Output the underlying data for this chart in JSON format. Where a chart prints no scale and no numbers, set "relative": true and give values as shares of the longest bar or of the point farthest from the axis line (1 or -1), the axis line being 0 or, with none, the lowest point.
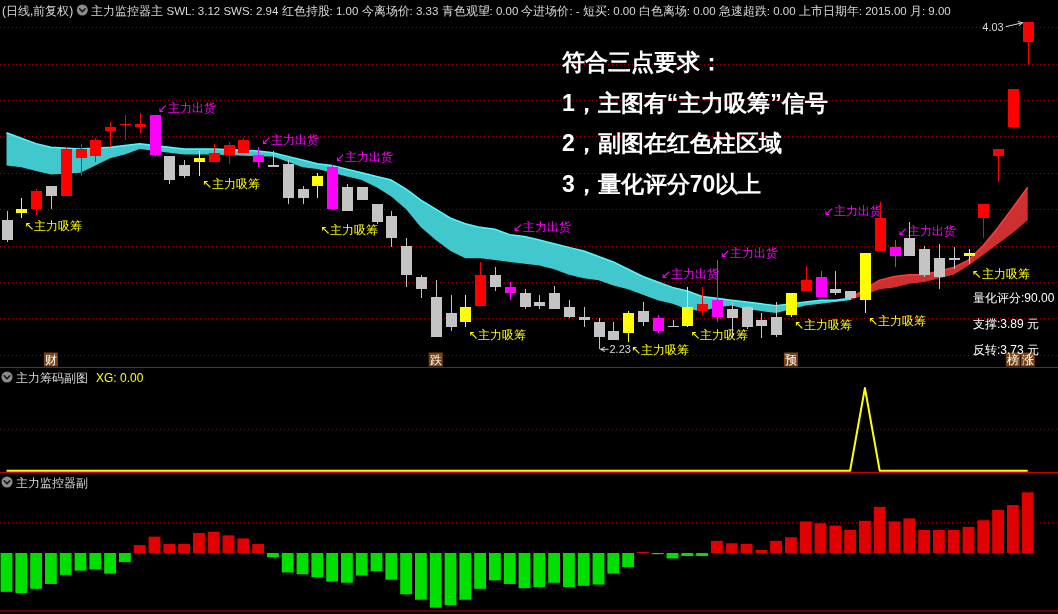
{
  "chart_data": [
    {
      "type": "candlestick",
      "title": "(日线,前复权)",
      "subtitle": "主力监控器主 SWL: 3.12 SWS: 2.94 红色持股: 1.00 今离场价: 3.33 青色观望: 0.00 今进场价: - 短买: 0.00 白色离场: 0.00 急速超跌: 0.00 上市日期年: 2015.00 月: 9.00",
      "categories": [
        null,
        null,
        null,
        "财",
        null,
        null,
        null,
        null,
        null,
        null,
        null,
        null,
        null,
        null,
        null,
        null,
        null,
        null,
        null,
        null,
        null,
        null,
        null,
        null,
        null,
        null,
        null,
        null,
        null,
        "跌",
        null,
        null,
        null,
        null,
        null,
        null,
        null,
        null,
        null,
        null,
        null,
        null,
        null,
        null,
        null,
        null,
        null,
        null,
        null,
        null,
        null,
        null,
        null,
        "预",
        null,
        null,
        null,
        null,
        null,
        null,
        null,
        null,
        null,
        null,
        null,
        null,
        null,
        null,
        "榜",
        "涨"
      ],
      "ohlc": [
        [
          2.94,
          2.99,
          2.82,
          2.83
        ],
        [
          2.98,
          3.06,
          2.95,
          3.0
        ],
        [
          3.0,
          3.11,
          2.97,
          3.1
        ],
        [
          3.13,
          3.13,
          3.0,
          3.07
        ],
        [
          3.07,
          3.34,
          3.07,
          3.33
        ],
        [
          3.28,
          3.36,
          3.18,
          3.33
        ],
        [
          3.29,
          3.39,
          3.26,
          3.38
        ],
        [
          3.43,
          3.48,
          3.34,
          3.45
        ],
        [
          3.46,
          3.52,
          3.38,
          3.47
        ],
        [
          3.45,
          3.53,
          3.42,
          3.47
        ],
        [
          3.52,
          3.52,
          3.29,
          3.3
        ],
        [
          3.29,
          3.29,
          3.14,
          3.16
        ],
        [
          3.24,
          3.27,
          3.17,
          3.18
        ],
        [
          3.26,
          3.32,
          3.18,
          3.28
        ],
        [
          3.26,
          3.36,
          3.26,
          3.31
        ],
        [
          3.3,
          3.37,
          3.25,
          3.35
        ],
        [
          3.31,
          3.39,
          3.31,
          3.38
        ],
        [
          3.3,
          3.34,
          3.23,
          3.26
        ],
        [
          3.24,
          3.32,
          3.23,
          3.23
        ],
        [
          3.25,
          3.27,
          3.03,
          3.06
        ],
        [
          3.11,
          3.13,
          3.03,
          3.06
        ],
        [
          3.13,
          3.2,
          3.06,
          3.18
        ],
        [
          3.23,
          3.24,
          3.0,
          3.0
        ],
        [
          3.12,
          3.14,
          2.99,
          2.99
        ],
        [
          3.12,
          3.12,
          3.05,
          3.05
        ],
        [
          3.03,
          3.03,
          2.92,
          2.93
        ],
        [
          2.96,
          2.99,
          2.79,
          2.84
        ],
        [
          2.8,
          2.84,
          2.57,
          2.64
        ],
        [
          2.63,
          2.64,
          2.51,
          2.56
        ],
        [
          2.52,
          2.61,
          2.3,
          2.3
        ],
        [
          2.43,
          2.53,
          2.33,
          2.35
        ],
        [
          2.38,
          2.53,
          2.35,
          2.46
        ],
        [
          2.47,
          2.71,
          2.47,
          2.64
        ],
        [
          2.64,
          2.68,
          2.55,
          2.57
        ],
        [
          2.57,
          2.6,
          2.5,
          2.54
        ],
        [
          2.54,
          2.56,
          2.45,
          2.46
        ],
        [
          2.49,
          2.53,
          2.45,
          2.47
        ],
        [
          2.54,
          2.58,
          2.45,
          2.45
        ],
        [
          2.46,
          2.5,
          2.4,
          2.41
        ],
        [
          2.41,
          2.46,
          2.35,
          2.39
        ],
        [
          2.38,
          2.4,
          2.23,
          2.3
        ],
        [
          2.33,
          2.38,
          2.28,
          2.28
        ],
        [
          2.32,
          2.44,
          2.27,
          2.43
        ],
        [
          2.44,
          2.49,
          2.36,
          2.38
        ],
        [
          2.4,
          2.42,
          2.32,
          2.33
        ],
        [
          2.36,
          2.39,
          2.35,
          2.35
        ],
        [
          2.36,
          2.57,
          2.35,
          2.46
        ],
        [
          2.44,
          2.57,
          2.42,
          2.48
        ],
        [
          2.5,
          2.72,
          2.38,
          2.41
        ],
        [
          2.45,
          2.49,
          2.29,
          2.4
        ],
        [
          2.46,
          2.47,
          2.34,
          2.35
        ],
        [
          2.39,
          2.43,
          2.29,
          2.36
        ],
        [
          2.41,
          2.49,
          2.3,
          2.31
        ],
        [
          2.42,
          2.54,
          2.41,
          2.54
        ],
        [
          2.55,
          2.69,
          2.55,
          2.61
        ],
        [
          2.63,
          2.66,
          2.52,
          2.52
        ],
        [
          2.56,
          2.66,
          2.53,
          2.54
        ],
        [
          2.55,
          2.55,
          2.5,
          2.51
        ],
        [
          2.5,
          2.76,
          2.43,
          2.76
        ],
        [
          2.77,
          3.04,
          2.77,
          2.95
        ],
        [
          2.79,
          2.83,
          2.68,
          2.74
        ],
        [
          2.84,
          2.93,
          2.74,
          2.74
        ],
        [
          2.78,
          2.8,
          2.63,
          2.64
        ],
        [
          2.73,
          2.81,
          2.56,
          2.63
        ],
        [
          2.73,
          2.79,
          2.67,
          2.73
        ],
        [
          2.74,
          2.78,
          2.7,
          2.76
        ],
        [
          2.95,
          3.03,
          2.84,
          3.03
        ],
        [
          3.29,
          3.33,
          3.15,
          3.33
        ],
        [
          3.45,
          3.66,
          3.44,
          3.66
        ],
        [
          3.92,
          4.03,
          3.8,
          4.03
        ]
      ],
      "colors": [
        "#c4c4c4",
        "#ffff00",
        "#ff0000",
        "#c4c4c4",
        "#ff0000",
        "#ff0000",
        "#ff0000",
        "#ff0000",
        "#ff0000",
        "#ff0000",
        "#ff00ff",
        "#c4c4c4",
        "#c4c4c4",
        "#ffff00",
        "#ff0000",
        "#ff0000",
        "#ff0000",
        "#ff00ff",
        "#c4c4c4",
        "#c4c4c4",
        "#c4c4c4",
        "#ffff00",
        "#ff00ff",
        "#c4c4c4",
        "#c4c4c4",
        "#c4c4c4",
        "#c4c4c4",
        "#c4c4c4",
        "#c4c4c4",
        "#c4c4c4",
        "#c4c4c4",
        "#ffff00",
        "#ff0000",
        "#c4c4c4",
        "#ff00ff",
        "#c4c4c4",
        "#c4c4c4",
        "#c4c4c4",
        "#c4c4c4",
        "#c4c4c4",
        "#c4c4c4",
        "#c4c4c4",
        "#ffff00",
        "#c4c4c4",
        "#ff00ff",
        "#c4c4c4",
        "#ffff00",
        "#ff0000",
        "#ff00ff",
        "#c4c4c4",
        "#c4c4c4",
        "#c4c4c4",
        "#c4c4c4",
        "#ffff00",
        "#ff0000",
        "#ff00ff",
        "#c4c4c4",
        "#c4c4c4",
        "#ffff00",
        "#ff0000",
        "#ff00ff",
        "#c4c4c4",
        "#c4c4c4",
        "#c4c4c4",
        "#c4c4c4",
        "#ffff00",
        "#ff0000",
        "#ff0000",
        "#ff0000",
        "#ff0000"
      ],
      "value_labels": [
        null,
        "↖主力吸筹",
        null,
        null,
        null,
        null,
        null,
        null,
        null,
        null,
        "↙主力出货",
        null,
        null,
        "↖主力吸筹",
        null,
        null,
        null,
        "↙主力出货",
        null,
        null,
        null,
        "↖主力吸筹",
        "↙主力出货",
        null,
        null,
        null,
        null,
        null,
        null,
        null,
        null,
        "↖主力吸筹",
        null,
        null,
        "↙主力出货",
        null,
        null,
        null,
        null,
        null,
        "2.23",
        null,
        "↖主力吸筹",
        null,
        "↙主力出货",
        null,
        "↖主力吸筹",
        null,
        "↙主力出货",
        null,
        null,
        null,
        null,
        "↖主力吸筹",
        null,
        "↙主力出货",
        null,
        null,
        "↖主力吸筹",
        null,
        "↙主力出货",
        null,
        null,
        null,
        null,
        "↖主力吸筹",
        null,
        null,
        null,
        "4.03"
      ],
      "series": [
        {
          "type": "line",
          "color": "#50faff",
          "values": [
            3.42,
            3.39,
            3.36,
            3.34,
            null,
            3.33,
            null,
            3.34,
            3.35,
            3.36,
            null,
            3.34,
            3.33,
            3.33,
            3.33,
            null,
            null,
            3.32,
            3.31,
            3.29,
            3.27,
            3.25,
            3.24,
            3.22,
            3.2,
            3.18,
            3.16,
            3.11,
            3.05,
            3.0,
            2.95,
            2.92,
            2.9,
            2.89,
            2.86,
            2.85,
            2.83,
            2.81,
            2.79,
            2.77,
            2.74,
            2.71,
            2.67,
            2.63,
            2.6,
            2.57,
            2.55,
            2.52,
            2.51,
            2.5,
            2.49,
            2.48,
            2.47,
            null,
            2.49,
            2.5,
            2.5,
            2.51,
            null,
            null,
            null,
            null,
            null,
            null,
            null,
            null,
            null,
            null,
            null,
            null
          ],
          "upper": [
            3.42,
            3.39,
            3.36,
            3.34,
            null,
            3.33,
            null,
            3.34,
            3.35,
            3.36,
            null,
            3.34,
            3.33,
            3.33,
            3.33,
            null,
            null,
            3.32,
            3.31,
            3.29,
            3.27,
            3.25,
            3.24,
            3.22,
            3.2,
            3.18,
            3.16,
            3.11,
            3.05,
            3.0,
            2.95,
            2.92,
            2.9,
            2.89,
            2.86,
            2.85,
            2.83,
            2.81,
            2.79,
            2.77,
            2.74,
            2.71,
            2.67,
            2.63,
            2.6,
            2.57,
            2.55,
            2.52,
            2.51,
            2.5,
            2.49,
            2.48,
            2.47,
            null,
            2.49,
            2.5,
            2.5,
            2.51,
            null,
            null,
            null,
            null,
            null,
            null,
            null,
            null,
            null,
            null,
            null,
            null
          ],
          "lower": [
            3.24,
            3.23,
            3.21,
            3.19,
            null,
            3.2,
            null,
            3.28,
            3.3,
            3.33,
            null,
            3.31,
            3.3,
            3.3,
            3.3,
            null,
            null,
            3.29,
            3.29,
            3.26,
            3.23,
            3.22,
            3.2,
            3.18,
            3.16,
            3.12,
            3.07,
            3.0,
            2.9,
            2.83,
            2.77,
            2.73,
            2.73,
            2.72,
            2.71,
            2.7,
            2.69,
            2.67,
            2.64,
            2.62,
            2.61,
            2.58,
            2.56,
            2.53,
            2.5,
            2.48,
            2.45,
            2.44,
            2.46,
            2.47,
            2.45,
            2.44,
            2.43,
            null,
            2.47,
            2.48,
            2.49,
            2.5,
            null,
            null,
            null,
            null,
            null,
            null,
            null,
            null,
            null,
            null,
            null,
            null
          ]
        },
        {
          "type": "line",
          "color": "#ff3c3c",
          "values": [
            null,
            null,
            null,
            null,
            null,
            null,
            null,
            null,
            null,
            null,
            null,
            null,
            null,
            null,
            null,
            null,
            null,
            null,
            null,
            null,
            null,
            null,
            null,
            null,
            null,
            null,
            null,
            null,
            null,
            null,
            null,
            null,
            null,
            null,
            null,
            null,
            null,
            null,
            null,
            null,
            null,
            null,
            null,
            null,
            null,
            null,
            null,
            null,
            null,
            null,
            null,
            null,
            null,
            null,
            null,
            null,
            null,
            2.51,
            null,
            2.61,
            2.63,
            2.64,
            2.64,
            null,
            2.68,
            2.72,
            2.8,
            2.9,
            3.01,
            3.12
          ],
          "upper": [
            null,
            null,
            null,
            null,
            null,
            null,
            null,
            null,
            null,
            null,
            null,
            null,
            null,
            null,
            null,
            null,
            null,
            null,
            null,
            null,
            null,
            null,
            null,
            null,
            null,
            null,
            null,
            null,
            null,
            null,
            null,
            null,
            null,
            null,
            null,
            null,
            null,
            null,
            null,
            null,
            null,
            null,
            null,
            null,
            null,
            null,
            null,
            null,
            null,
            null,
            null,
            null,
            null,
            null,
            null,
            null,
            null,
            2.51,
            null,
            2.61,
            2.63,
            2.64,
            2.64,
            null,
            2.68,
            2.72,
            2.8,
            2.9,
            3.01,
            3.12
          ],
          "lower": [
            null,
            null,
            null,
            null,
            null,
            null,
            null,
            null,
            null,
            null,
            null,
            null,
            null,
            null,
            null,
            null,
            null,
            null,
            null,
            null,
            null,
            null,
            null,
            null,
            null,
            null,
            null,
            null,
            null,
            null,
            null,
            null,
            null,
            null,
            null,
            null,
            null,
            null,
            null,
            null,
            null,
            null,
            null,
            null,
            null,
            null,
            null,
            null,
            null,
            null,
            null,
            null,
            null,
            null,
            null,
            null,
            null,
            2.5,
            null,
            2.56,
            2.57,
            2.59,
            2.6,
            null,
            2.64,
            2.69,
            2.75,
            2.81,
            2.87,
            2.94
          ]
        }
      ],
      "annotations": [
        "量化评分:90.00",
        "支撑:3.89 元",
        "反转:3.73 元"
      ],
      "yticks": [
        {
          "value": 2.2,
          "label": null
        },
        {
          "value": 2.4,
          "label": null
        },
        {
          "value": 2.6,
          "label": null
        },
        {
          "value": 2.8,
          "label": null
        },
        {
          "value": 3.0,
          "label": null
        },
        {
          "value": 3.2,
          "label": null
        },
        {
          "value": 3.4,
          "label": null
        },
        {
          "value": 3.6,
          "label": null
        },
        {
          "value": 3.8,
          "label": null
        },
        {
          "value": 4.0,
          "label": null
        }
      ],
      "grid": "y",
      "tick_labels": "x"
    },
    {
      "type": "other",
      "title": "符合三点要求：",
      "annotations": [
        "1，主图有“主力吸筹”信号",
        "2，副图在红色柱区域",
        "3，量化评分70以上"
      ]
    },
    {
      "type": "line",
      "title": "主力筹码副图",
      "relative": true,
      "legend": "top left",
      "ref_lines": [
        {
          "axis": "y",
          "value": 0.5,
          "color": "#9a0000",
          "line_style": "dotted"
        }
      ],
      "categories": [
        null,
        null,
        null,
        null,
        null,
        null,
        null,
        null,
        null,
        null,
        null,
        null,
        null,
        null,
        null,
        null,
        null,
        null,
        null,
        null,
        null,
        null,
        null,
        null,
        null,
        null,
        null,
        null,
        null,
        null,
        null,
        null,
        null,
        null,
        null,
        null,
        null,
        null,
        null,
        null,
        null,
        null,
        null,
        null,
        null,
        null,
        null,
        null,
        null,
        null,
        null,
        null,
        null,
        null,
        null,
        null,
        null,
        null,
        null,
        null,
        null,
        null,
        null,
        null,
        null,
        null,
        null,
        null,
        null,
        null
      ],
      "series": [
        {
          "name": "XG: 0.00",
          "color": "#ffff00",
          "values": [
            0,
            0,
            0,
            0,
            0,
            0,
            0,
            0,
            0,
            0,
            0,
            0,
            0,
            0,
            0,
            0,
            0,
            0,
            0,
            0,
            0,
            0,
            0,
            0,
            0,
            0,
            0,
            0,
            0,
            0,
            0,
            0,
            0,
            0,
            0,
            0,
            0,
            0,
            0,
            0,
            0,
            0,
            0,
            0,
            0,
            0,
            0,
            0,
            0,
            0,
            0,
            0,
            0,
            0,
            0,
            0,
            0,
            0,
            1,
            0,
            0,
            0,
            0,
            0,
            0,
            0,
            0,
            0,
            0,
            0
          ]
        }
      ]
    },
    {
      "type": "bar",
      "title": "主力监控器副",
      "relative": true,
      "ref_lines": [
        {
          "axis": "y",
          "value": 0.5,
          "color": "#9a0000",
          "line_style": "dotted"
        }
      ],
      "categories": [
        null,
        null,
        null,
        null,
        null,
        null,
        null,
        null,
        null,
        null,
        null,
        null,
        null,
        null,
        null,
        null,
        null,
        null,
        null,
        null,
        null,
        null,
        null,
        null,
        null,
        null,
        null,
        null,
        null,
        null,
        null,
        null,
        null,
        null,
        null,
        null,
        null,
        null,
        null,
        null,
        null,
        null,
        null,
        null,
        null,
        null,
        null,
        null,
        null,
        null,
        null,
        null,
        null,
        null,
        null,
        null,
        null,
        null,
        null,
        null,
        null,
        null,
        null,
        null,
        null,
        null,
        null,
        null,
        null,
        null
      ],
      "values": [
        -0.64,
        -0.66,
        -0.59,
        -0.51,
        -0.36,
        -0.29,
        -0.27,
        -0.34,
        -0.15,
        0.13,
        0.27,
        0.15,
        0.15,
        0.33,
        0.35,
        0.29,
        0.24,
        0.15,
        -0.07,
        -0.32,
        -0.35,
        -0.4,
        -0.47,
        -0.49,
        -0.37,
        -0.3,
        -0.44,
        -0.68,
        -0.77,
        -0.9,
        -0.86,
        -0.77,
        -0.59,
        -0.45,
        -0.51,
        -0.58,
        -0.56,
        -0.49,
        -0.56,
        -0.54,
        -0.52,
        -0.34,
        -0.23,
        0.02,
        -0.02,
        -0.09,
        -0.05,
        -0.05,
        0.2,
        0.16,
        0.15,
        0.05,
        0.2,
        0.26,
        0.52,
        0.49,
        0.45,
        0.38,
        0.53,
        0.76,
        0.52,
        0.57,
        0.38,
        0.38,
        0.38,
        0.43,
        0.54,
        0.71,
        0.79,
        1
      ],
      "colors": [
        "#00e000",
        "#00e000",
        "#00e000",
        "#00e000",
        "#00e000",
        "#00e000",
        "#00e000",
        "#00e000",
        "#00e000",
        "#e00000",
        "#e00000",
        "#e00000",
        "#e00000",
        "#e00000",
        "#e00000",
        "#e00000",
        "#e00000",
        "#e00000",
        "#00e000",
        "#00e000",
        "#00e000",
        "#00e000",
        "#00e000",
        "#00e000",
        "#00e000",
        "#00e000",
        "#00e000",
        "#00e000",
        "#00e000",
        "#00e000",
        "#00e000",
        "#00e000",
        "#00e000",
        "#00e000",
        "#00e000",
        "#00e000",
        "#00e000",
        "#00e000",
        "#00e000",
        "#00e000",
        "#00e000",
        "#00e000",
        "#00e000",
        "#e00000",
        "#00e000",
        "#00e000",
        "#00e000",
        "#00e000",
        "#e00000",
        "#e00000",
        "#e00000",
        "#e00000",
        "#e00000",
        "#e00000",
        "#e00000",
        "#e00000",
        "#e00000",
        "#e00000",
        "#e00000",
        "#e00000",
        "#e00000",
        "#e00000",
        "#e00000",
        "#e00000",
        "#e00000",
        "#e00000",
        "#e00000",
        "#e00000",
        "#e00000",
        "#e00000"
      ]
    }
  ]
}
